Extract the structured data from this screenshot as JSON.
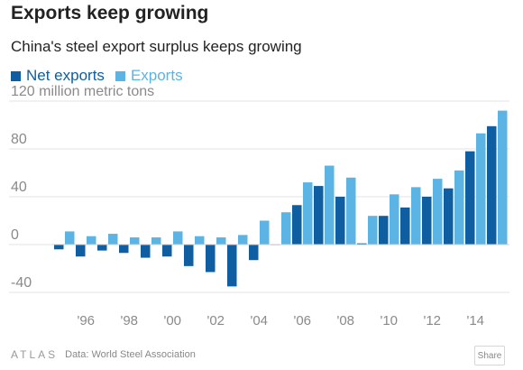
{
  "title": "Exports keep growing",
  "subtitle": "China's steel export surplus keeps growing",
  "colors": {
    "net": "#0e5ea1",
    "exports": "#5bb4e3",
    "grid": "#e3e3e3",
    "axis": "#cfcfcf"
  },
  "legend": {
    "net_label": "Net exports",
    "exports_label": "Exports"
  },
  "footer": {
    "logo": "ATLAS",
    "source": "Data: World Steel Association",
    "share_label": "Share"
  },
  "chart_data": {
    "type": "bar",
    "x": [
      1995,
      1996,
      1997,
      1998,
      1999,
      2000,
      2001,
      2002,
      2003,
      2004,
      2005,
      2006,
      2007,
      2008,
      2009,
      2010,
      2011,
      2012,
      2013,
      2014,
      2015
    ],
    "series": [
      {
        "name": "Net exports",
        "values": [
          -4,
          -10,
          -5,
          -7,
          -11,
          -10,
          -18,
          -23,
          -35,
          -13,
          0,
          33,
          49,
          40,
          1,
          24,
          31,
          40,
          47,
          78,
          99
        ]
      },
      {
        "name": "Exports",
        "values": [
          11,
          7,
          9,
          6,
          6,
          11,
          7,
          6,
          8,
          20,
          27,
          52,
          66,
          56,
          24,
          42,
          48,
          55,
          62,
          93,
          112
        ]
      }
    ],
    "ylim": [
      -40,
      120
    ],
    "yticks": [
      -40,
      0,
      40,
      80,
      120
    ],
    "ytick_labels": [
      "-40",
      "0",
      "40",
      "80",
      "120 million metric tons"
    ],
    "xtick_labels": [
      "'96",
      "'98",
      "'00",
      "'02",
      "'04",
      "'06",
      "'08",
      "'10",
      "'12",
      "'14"
    ],
    "xtick_years": [
      1996,
      1998,
      2000,
      2002,
      2004,
      2006,
      2008,
      2010,
      2012,
      2014
    ],
    "grid": true
  }
}
